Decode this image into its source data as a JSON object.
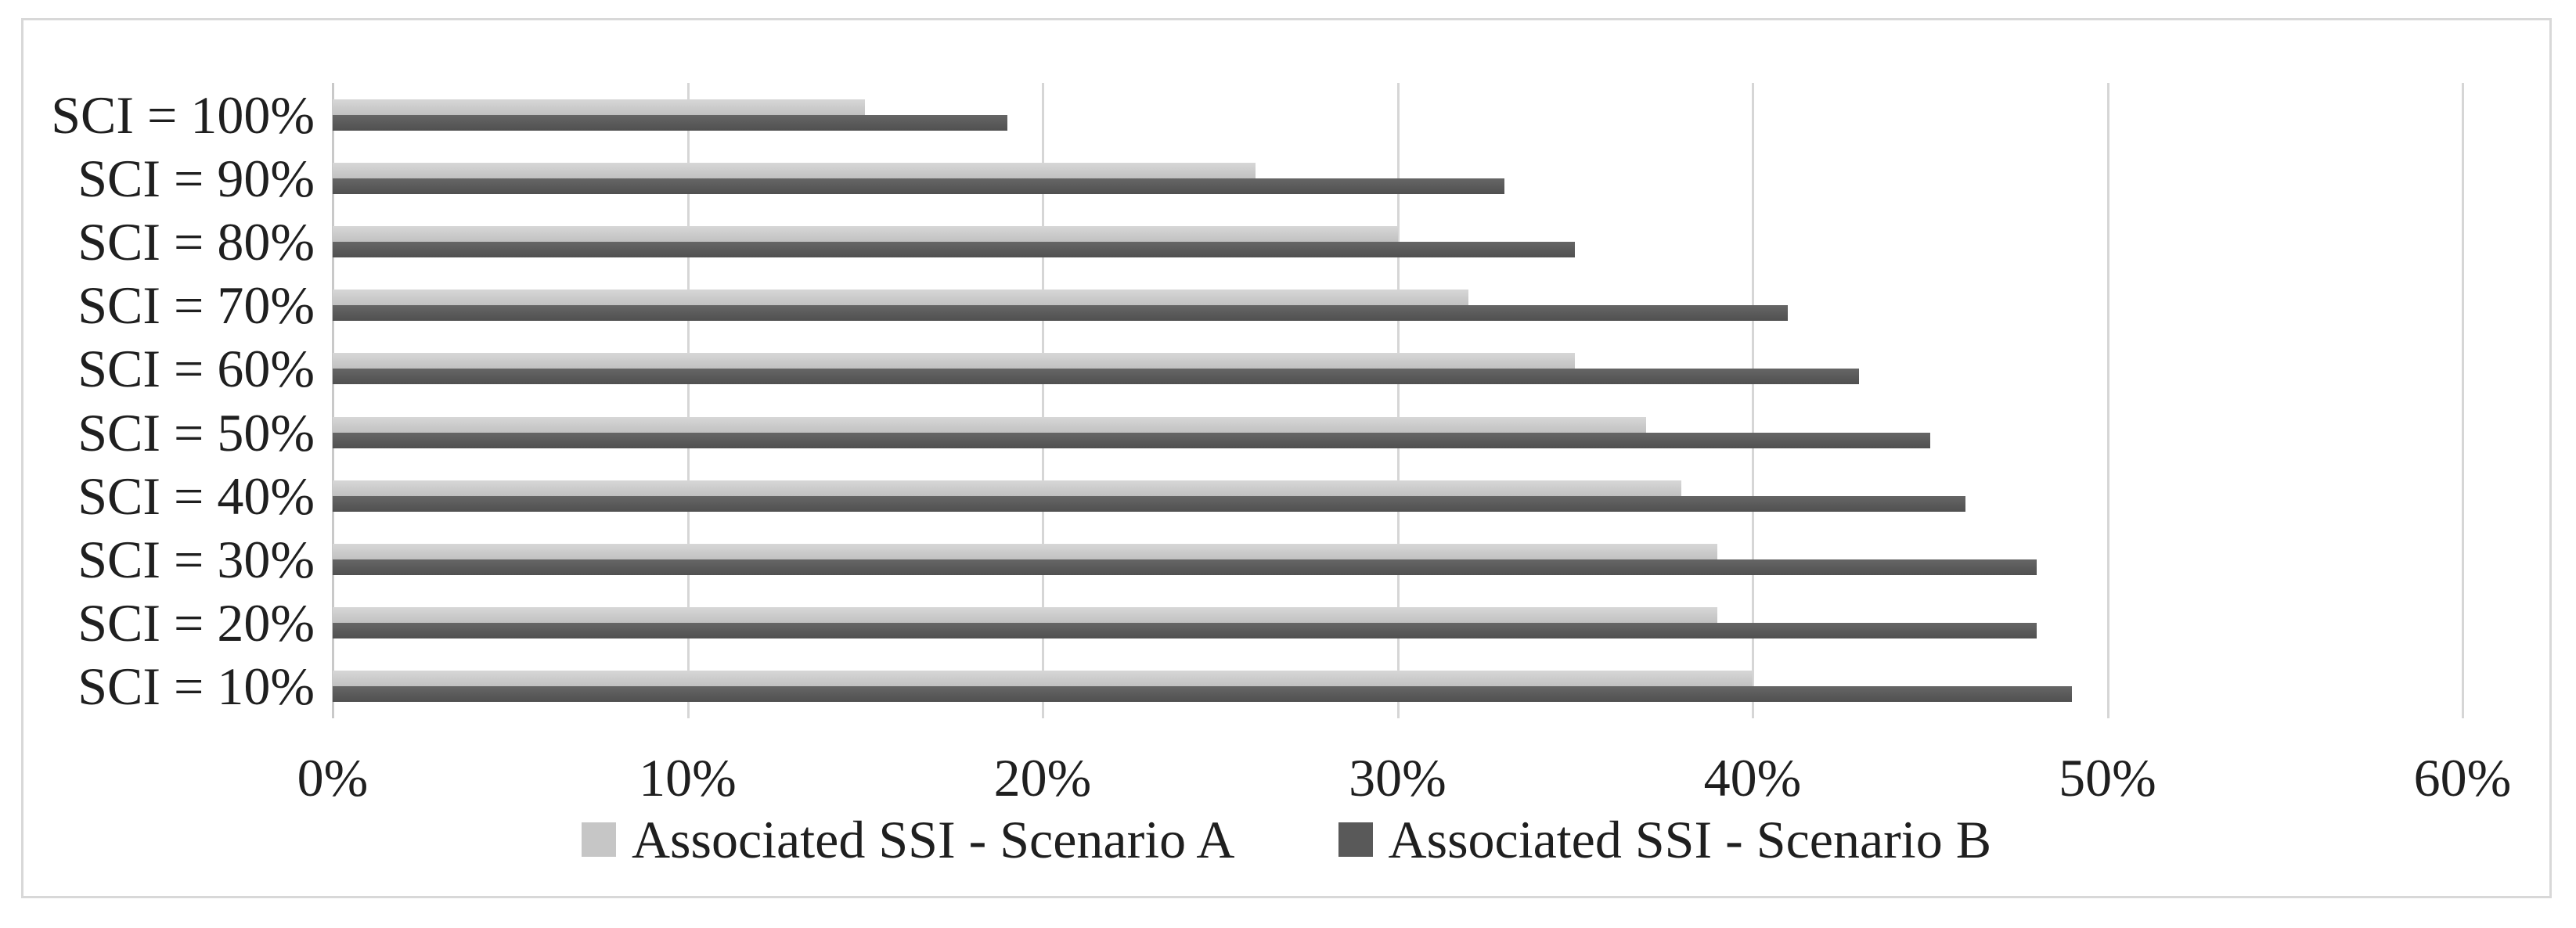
{
  "chart_data": {
    "type": "bar",
    "orientation": "horizontal",
    "title": "",
    "xlabel": "",
    "ylabel": "",
    "xlim": [
      0,
      60
    ],
    "grid": true,
    "legend_position": "bottom",
    "x_ticks": [
      "0%",
      "10%",
      "20%",
      "30%",
      "40%",
      "50%",
      "60%"
    ],
    "categories": [
      "SCI = 100%",
      "SCI = 90%",
      "SCI = 80%",
      "SCI = 70%",
      "SCI = 60%",
      "SCI = 50%",
      "SCI = 40%",
      "SCI = 30%",
      "SCI = 20%",
      "SCI = 10%"
    ],
    "series": [
      {
        "name": "Associated SSI - Scenario A",
        "color": "#c6c6c6",
        "values": [
          15,
          26,
          30,
          32,
          35,
          37,
          38,
          39,
          39,
          40
        ]
      },
      {
        "name": "Associated SSI - Scenario B",
        "color": "#595959",
        "values": [
          19,
          33,
          35,
          41,
          43,
          45,
          46,
          48,
          48,
          49
        ]
      }
    ]
  },
  "colors": {
    "frame_border": "#d8d8d8",
    "gridline": "#d6d6d6",
    "text": "#1f1f1f"
  }
}
